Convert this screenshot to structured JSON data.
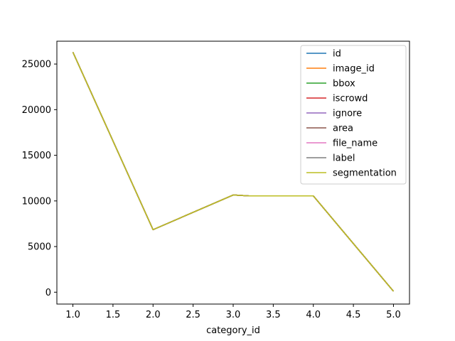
{
  "chart_data": {
    "type": "line",
    "title": "",
    "xlabel": "category_id",
    "ylabel": "",
    "x": [
      1.0,
      2.0,
      3.0,
      3.2,
      4.0,
      5.0
    ],
    "xlim": [
      0.8,
      5.2
    ],
    "ylim": [
      -1300,
      27500
    ],
    "x_ticks": [
      "1.0",
      "1.5",
      "2.0",
      "2.5",
      "3.0",
      "3.5",
      "4.0",
      "4.5",
      "5.0"
    ],
    "y_ticks": [
      "0",
      "5000",
      "10000",
      "15000",
      "20000",
      "25000"
    ],
    "grid": false,
    "legend_position": "top-right",
    "series": [
      {
        "name": "id",
        "color": "#1f77b4",
        "values": [
          26300,
          6850,
          10650,
          10550,
          10550,
          100
        ]
      },
      {
        "name": "image_id",
        "color": "#ff7f0e",
        "values": [
          26300,
          6850,
          10650,
          10550,
          10550,
          100
        ]
      },
      {
        "name": "bbox",
        "color": "#2ca02c",
        "values": [
          26300,
          6850,
          10650,
          10550,
          10550,
          100
        ]
      },
      {
        "name": "iscrowd",
        "color": "#d62728",
        "values": [
          26300,
          6850,
          10650,
          10550,
          10550,
          100
        ]
      },
      {
        "name": "ignore",
        "color": "#9467bd",
        "values": [
          26300,
          6850,
          10650,
          10550,
          10550,
          100
        ]
      },
      {
        "name": "area",
        "color": "#8c564b",
        "values": [
          26300,
          6850,
          10650,
          10550,
          10550,
          100
        ]
      },
      {
        "name": "file_name",
        "color": "#e377c2",
        "values": [
          26300,
          6850,
          10650,
          10550,
          10550,
          100
        ]
      },
      {
        "name": "label",
        "color": "#7f7f7f",
        "values": [
          26300,
          6850,
          10650,
          10550,
          10550,
          100
        ]
      },
      {
        "name": "segmentation",
        "color": "#bcbd22",
        "values": [
          26300,
          6850,
          10650,
          10550,
          10550,
          100
        ]
      }
    ]
  }
}
